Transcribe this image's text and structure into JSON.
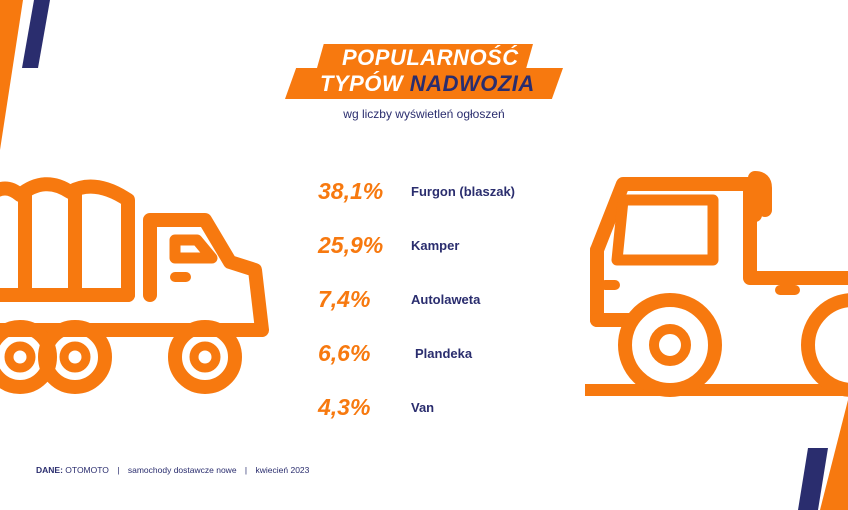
{
  "title": {
    "line1": "POPULARNOŚĆ",
    "line2_a": "TYPÓW",
    "line2_b": "NADWOZIA"
  },
  "subtitle": "wg liczby wyświetleń ogłoszeń",
  "chart_data": {
    "type": "table",
    "title": "POPULARNOŚĆ TYPÓW NADWOZIA",
    "subtitle": "wg liczby wyświetleń ogłoszeń",
    "categories": [
      "Furgon (blaszak)",
      "Kamper",
      "Autolaweta",
      "Plandeka",
      "Van"
    ],
    "values": [
      38.1,
      25.9,
      7.4,
      6.6,
      4.3
    ],
    "value_labels": [
      "38,1%",
      "25,9%",
      "7,4%",
      "6,6%",
      "4,3%"
    ],
    "unit": "%"
  },
  "footer": {
    "source_label": "DANE:",
    "source": "OTOMOTO",
    "separator": "|",
    "segment": "samochody dostawcze nowe",
    "date": "kwiecień 2023"
  },
  "colors": {
    "accent": "#f7790f",
    "navy": "#2a2d6e",
    "background": "#ffffff"
  },
  "icons": [
    "covered-truck-icon",
    "pickup-truck-icon"
  ]
}
